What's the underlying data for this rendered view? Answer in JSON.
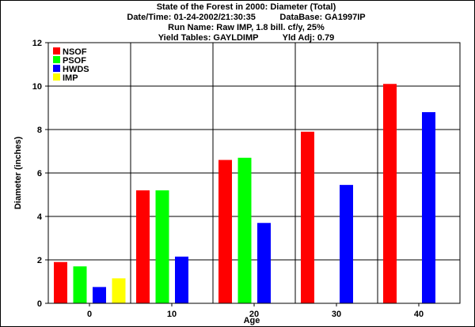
{
  "chart_data": {
    "type": "bar",
    "title_lines": [
      "State of the Forest in 2000: Diameter (Total)",
      "Date/Time: 01-24-2002/21:30:35          DataBase: GA1997IP",
      "Run Name: Raw IMP, 1.8 bill. cf/y, 25%",
      "Yield Tables: GAYLDIMP          Yld Adj: 0.79"
    ],
    "xlabel": "Age",
    "ylabel": "Diameter (inches)",
    "categories": [
      "0",
      "10",
      "20",
      "30",
      "40"
    ],
    "ylim": [
      0,
      12
    ],
    "yticks": [
      0,
      2,
      4,
      6,
      8,
      10,
      12
    ],
    "grid": true,
    "legend_position": "top-left",
    "series": [
      {
        "name": "NSOF",
        "color": "#ff0000",
        "values": [
          1.9,
          5.2,
          6.6,
          7.9,
          10.1
        ]
      },
      {
        "name": "PSOF",
        "color": "#00ff00",
        "values": [
          1.7,
          5.2,
          6.7,
          null,
          null
        ]
      },
      {
        "name": "HWDS",
        "color": "#0000ff",
        "values": [
          0.75,
          2.15,
          3.7,
          5.45,
          8.8
        ]
      },
      {
        "name": "IMP",
        "color": "#ffff00",
        "values": [
          1.15,
          null,
          null,
          null,
          null
        ]
      }
    ]
  }
}
